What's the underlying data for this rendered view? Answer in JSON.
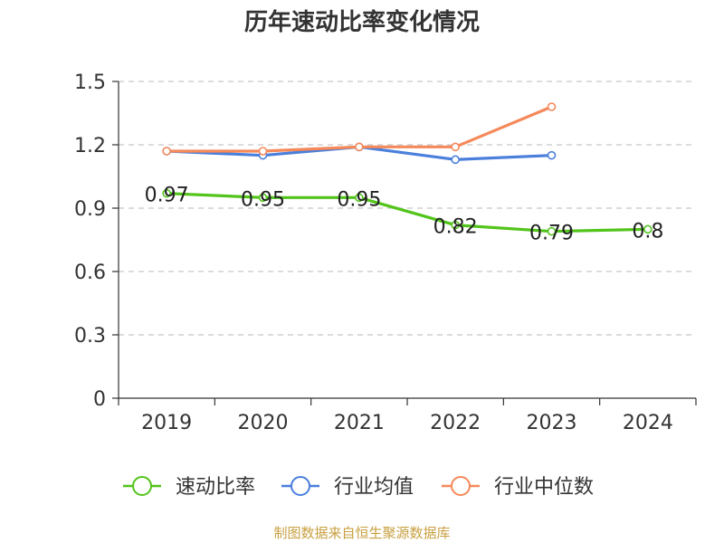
{
  "chart_data": {
    "type": "line",
    "title": "历年速动比率变化情况",
    "categories": [
      "2019",
      "2020",
      "2021",
      "2022",
      "2023",
      "2024"
    ],
    "y_ticks": [
      "0",
      "0.3",
      "0.6",
      "0.9",
      "1.2",
      "1.5"
    ],
    "ylim": [
      0,
      1.5
    ],
    "grid": true,
    "legend_position": "bottom",
    "series": [
      {
        "name": "速动比率",
        "color": "#52c41a",
        "values": [
          0.97,
          0.95,
          0.95,
          0.82,
          0.79,
          0.8
        ],
        "labels": [
          "0.97",
          "0.95",
          "0.95",
          "0.82",
          "0.79",
          "0.8"
        ]
      },
      {
        "name": "行业均值",
        "color": "#4a7fdc",
        "values": [
          1.17,
          1.15,
          1.19,
          1.13,
          1.15,
          null
        ]
      },
      {
        "name": "行业中位数",
        "color": "#f5895a",
        "values": [
          1.17,
          1.17,
          1.19,
          1.19,
          1.38,
          null
        ]
      }
    ]
  },
  "source_note": "制图数据来自恒生聚源数据库"
}
